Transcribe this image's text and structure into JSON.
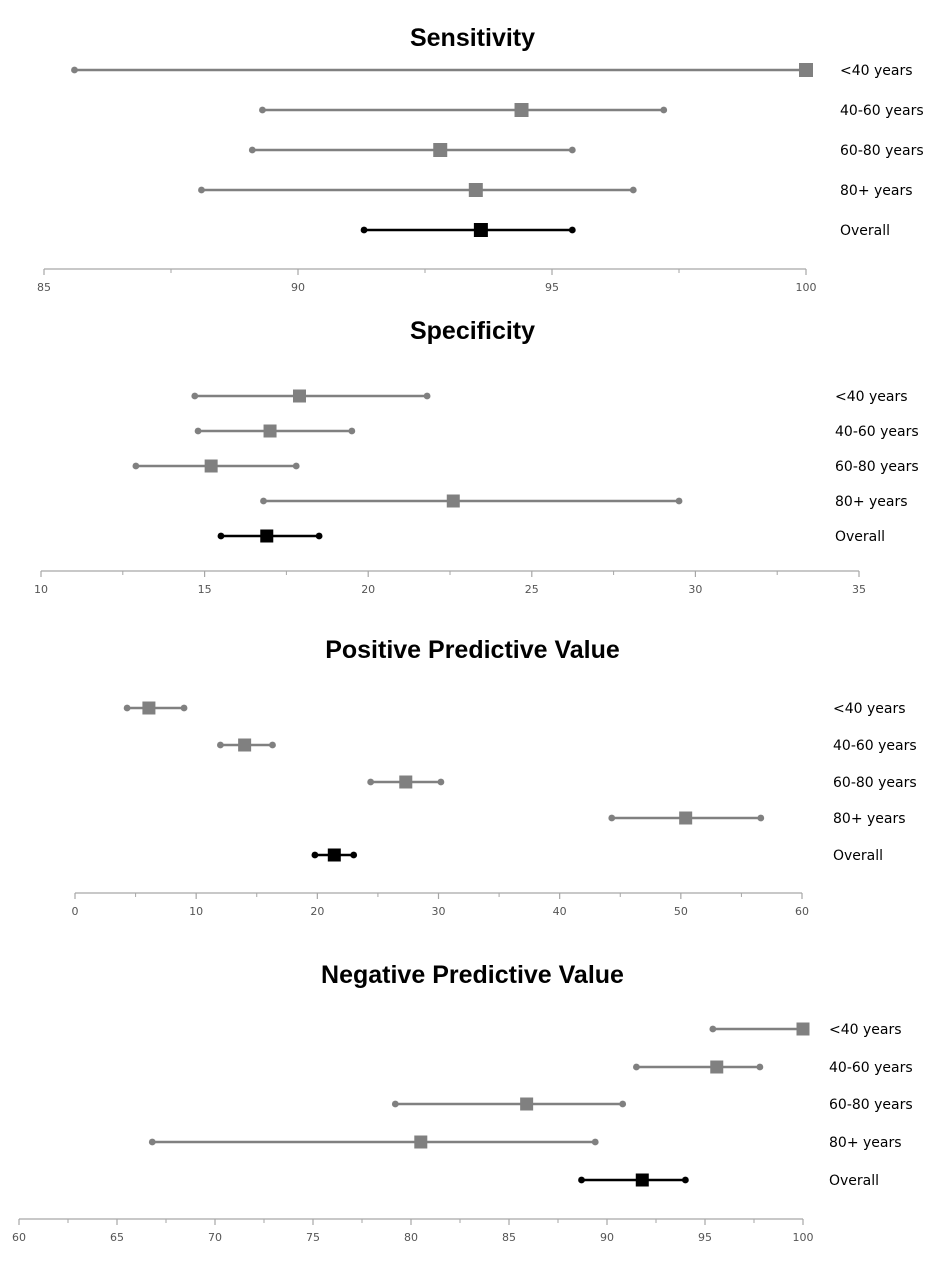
{
  "colors": {
    "group": "#808080",
    "overall": "#000000",
    "axis": "#a6a6a6"
  },
  "chart_data": [
    {
      "type": "forest",
      "title": "Sensitivity",
      "categories": [
        "<40 years",
        "40-60 years",
        "60-80 years",
        "80+ years",
        "Overall"
      ],
      "estimates": [
        100,
        94.4,
        92.8,
        93.5,
        93.6
      ],
      "lower": [
        85.6,
        89.3,
        89.1,
        88.1,
        91.3
      ],
      "upper": [
        100,
        97.2,
        95.4,
        96.6,
        95.4
      ],
      "xlim": [
        85,
        100
      ],
      "xticks": [
        85,
        90,
        95,
        100
      ],
      "xtick_labels": [
        "85",
        "90",
        "95",
        "100"
      ]
    },
    {
      "type": "forest",
      "title": "Specificity",
      "categories": [
        "<40 years",
        "40-60 years",
        "60-80 years",
        "80+ years",
        "Overall"
      ],
      "estimates": [
        17.9,
        17.0,
        15.2,
        22.6,
        16.9
      ],
      "lower": [
        14.7,
        14.8,
        12.9,
        16.8,
        15.5
      ],
      "upper": [
        21.8,
        19.5,
        17.8,
        29.5,
        18.5
      ],
      "xlim": [
        10,
        35
      ],
      "xticks": [
        10,
        15,
        20,
        25,
        30,
        35
      ],
      "xtick_labels": [
        "10",
        "15",
        "20",
        "25",
        "30",
        "35"
      ]
    },
    {
      "type": "forest",
      "title": "Positive Predictive Value",
      "categories": [
        "<40 years",
        "40-60 years",
        "60-80 years",
        "80+ years",
        "Overall"
      ],
      "estimates": [
        6.1,
        14.0,
        27.3,
        50.4,
        21.4
      ],
      "lower": [
        4.3,
        12.0,
        24.4,
        44.3,
        19.8
      ],
      "upper": [
        9.0,
        16.3,
        30.2,
        56.6,
        23.0
      ],
      "xlim": [
        0,
        60
      ],
      "xticks": [
        0,
        10,
        20,
        30,
        40,
        50,
        60
      ],
      "xtick_labels": [
        "0",
        "10",
        "20",
        "30",
        "40",
        "50",
        "60"
      ]
    },
    {
      "type": "forest",
      "title": "Negative Predictive Value",
      "categories": [
        "<40 years",
        "40-60 years",
        "60-80 years",
        "80+ years",
        "Overall"
      ],
      "estimates": [
        100,
        95.6,
        85.9,
        80.5,
        91.8
      ],
      "lower": [
        95.4,
        91.5,
        79.2,
        66.8,
        88.7
      ],
      "upper": [
        100,
        97.8,
        90.8,
        89.4,
        94.0
      ],
      "xlim": [
        60,
        100
      ],
      "xticks": [
        60,
        65,
        70,
        75,
        80,
        85,
        90,
        95,
        100
      ],
      "xtick_labels": [
        "60",
        "65",
        "70",
        "75",
        "80",
        "85",
        "90",
        "95",
        "100"
      ]
    }
  ]
}
